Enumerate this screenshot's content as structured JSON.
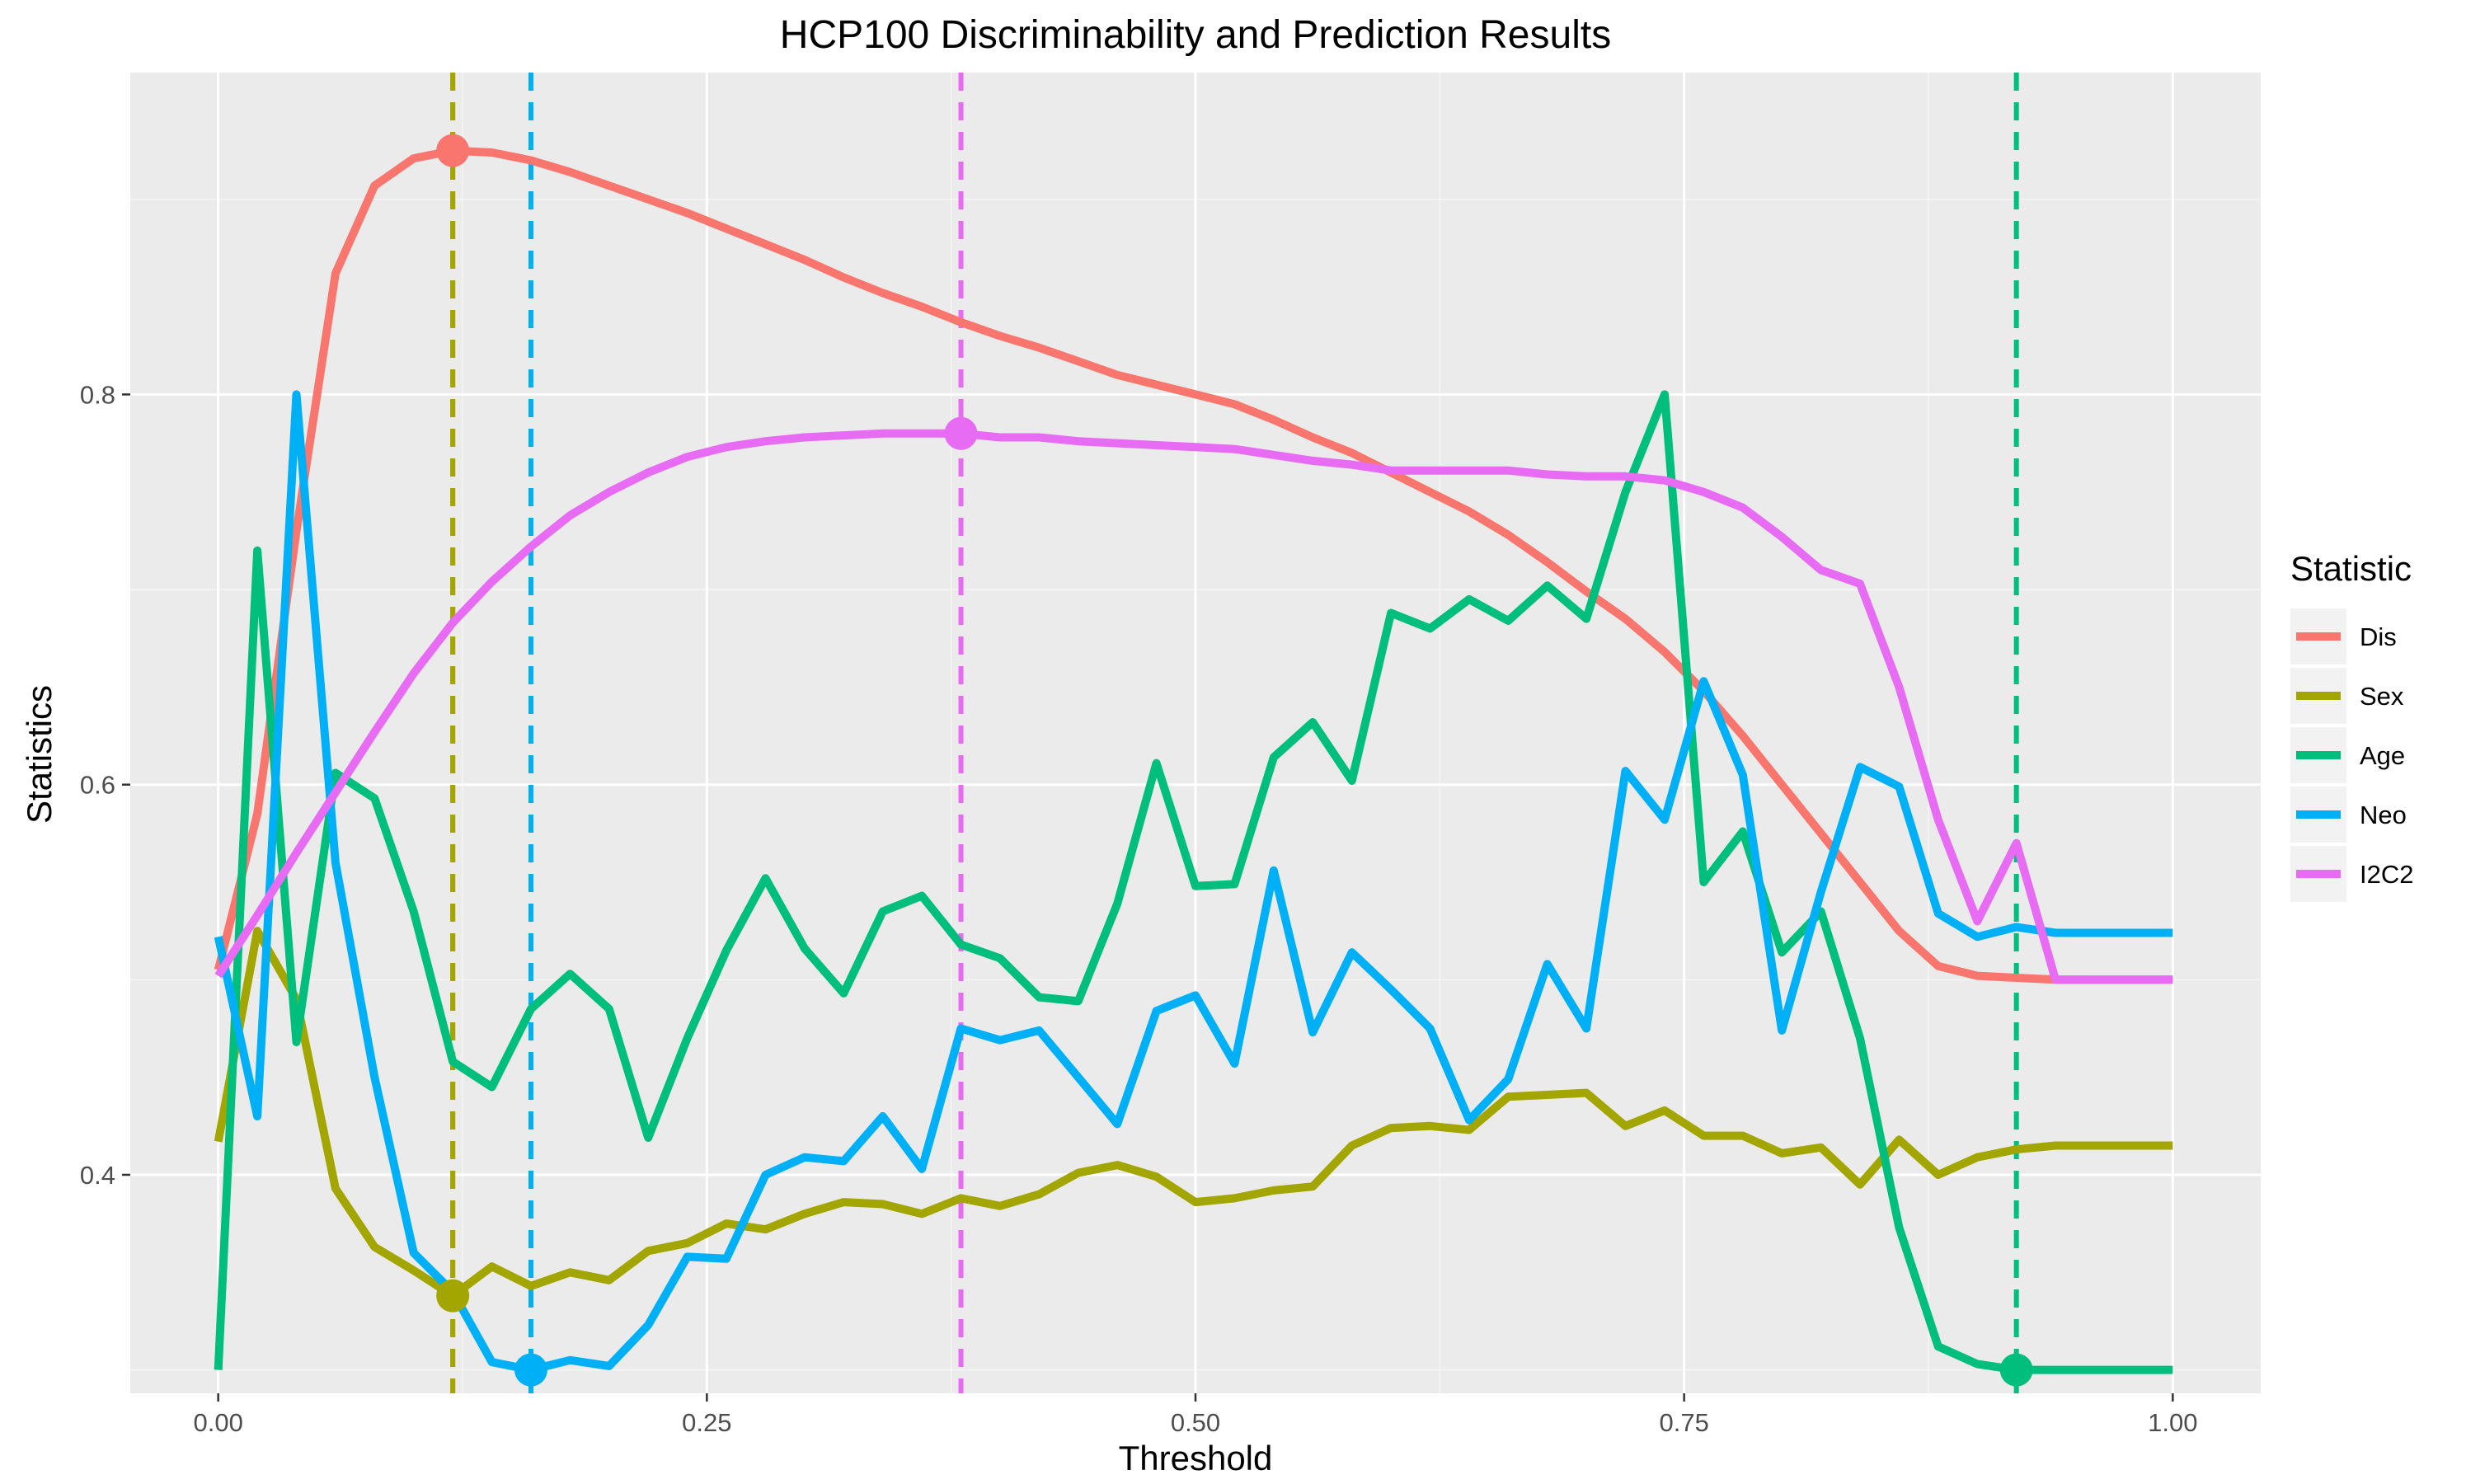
{
  "chart_data": {
    "type": "line",
    "title": "HCP100 Discriminability and Prediction Results",
    "xlabel": "Threshold",
    "ylabel": "Statistics",
    "xlim": [
      -0.045,
      1.045
    ],
    "ylim": [
      0.288,
      0.965
    ],
    "x_ticks": [
      0.0,
      0.25,
      0.5,
      0.75,
      1.0
    ],
    "x_tick_labels": [
      "0.00",
      "0.25",
      "0.50",
      "0.75",
      "1.00"
    ],
    "y_ticks": [
      0.4,
      0.6,
      0.8
    ],
    "y_tick_labels": [
      "0.4",
      "0.6",
      "0.8"
    ],
    "grid": true,
    "legend": {
      "title": "Statistic",
      "position": "right"
    },
    "series": [
      {
        "name": "Dis",
        "color": "#F8766D",
        "x": [
          0.0,
          0.02,
          0.04,
          0.06,
          0.08,
          0.1,
          0.12,
          0.14,
          0.16,
          0.18,
          0.2,
          0.22,
          0.24,
          0.26,
          0.28,
          0.3,
          0.32,
          0.34,
          0.36,
          0.38,
          0.4,
          0.42,
          0.44,
          0.46,
          0.48,
          0.5,
          0.52,
          0.54,
          0.56,
          0.58,
          0.6,
          0.62,
          0.64,
          0.66,
          0.68,
          0.7,
          0.72,
          0.74,
          0.76,
          0.78,
          0.8,
          0.82,
          0.84,
          0.86,
          0.88,
          0.9,
          0.92,
          0.94,
          0.96,
          0.98,
          1.0
        ],
        "values": [
          0.505,
          0.585,
          0.73,
          0.862,
          0.907,
          0.921,
          0.925,
          0.924,
          0.92,
          0.914,
          0.907,
          0.9,
          0.893,
          0.885,
          0.877,
          0.869,
          0.86,
          0.852,
          0.845,
          0.837,
          0.83,
          0.824,
          0.817,
          0.81,
          0.805,
          0.8,
          0.795,
          0.787,
          0.778,
          0.77,
          0.76,
          0.75,
          0.74,
          0.728,
          0.714,
          0.699,
          0.685,
          0.668,
          0.648,
          0.625,
          0.6,
          0.575,
          0.55,
          0.525,
          0.507,
          0.502,
          0.501,
          0.5,
          0.5,
          0.5,
          0.5
        ],
        "optimum": {
          "x": 0.12,
          "y": 0.925
        }
      },
      {
        "name": "Sex",
        "color": "#A3A500",
        "x": [
          0.0,
          0.02,
          0.04,
          0.06,
          0.08,
          0.1,
          0.12,
          0.14,
          0.16,
          0.18,
          0.2,
          0.22,
          0.24,
          0.26,
          0.28,
          0.3,
          0.32,
          0.34,
          0.36,
          0.38,
          0.4,
          0.42,
          0.44,
          0.46,
          0.48,
          0.5,
          0.52,
          0.54,
          0.56,
          0.58,
          0.6,
          0.62,
          0.64,
          0.66,
          0.68,
          0.7,
          0.72,
          0.74,
          0.76,
          0.78,
          0.8,
          0.82,
          0.84,
          0.86,
          0.88,
          0.9,
          0.92,
          0.94,
          0.96,
          0.98,
          1.0
        ],
        "values": [
          0.417,
          0.525,
          0.49,
          0.393,
          0.363,
          0.351,
          0.338,
          0.353,
          0.343,
          0.35,
          0.346,
          0.361,
          0.365,
          0.375,
          0.372,
          0.38,
          0.386,
          0.385,
          0.38,
          0.388,
          0.384,
          0.39,
          0.401,
          0.405,
          0.399,
          0.386,
          0.388,
          0.392,
          0.394,
          0.415,
          0.424,
          0.425,
          0.423,
          0.44,
          0.441,
          0.442,
          0.425,
          0.433,
          0.42,
          0.42,
          0.411,
          0.414,
          0.395,
          0.418,
          0.4,
          0.409,
          0.413,
          0.415,
          0.415,
          0.415,
          0.415
        ],
        "optimum": {
          "x": 0.12,
          "y": 0.338
        }
      },
      {
        "name": "Age",
        "color": "#00BF7D",
        "x": [
          0.0,
          0.02,
          0.04,
          0.06,
          0.08,
          0.1,
          0.12,
          0.14,
          0.16,
          0.18,
          0.2,
          0.22,
          0.24,
          0.26,
          0.28,
          0.3,
          0.32,
          0.34,
          0.36,
          0.38,
          0.4,
          0.42,
          0.44,
          0.46,
          0.48,
          0.5,
          0.52,
          0.54,
          0.56,
          0.58,
          0.6,
          0.62,
          0.64,
          0.66,
          0.68,
          0.7,
          0.72,
          0.74,
          0.76,
          0.78,
          0.8,
          0.82,
          0.84,
          0.86,
          0.88,
          0.9,
          0.92,
          0.94,
          0.96,
          0.98,
          1.0
        ],
        "values": [
          0.3,
          0.72,
          0.468,
          0.606,
          0.593,
          0.535,
          0.458,
          0.445,
          0.485,
          0.503,
          0.485,
          0.419,
          0.47,
          0.515,
          0.552,
          0.516,
          0.493,
          0.535,
          0.543,
          0.518,
          0.511,
          0.491,
          0.489,
          0.539,
          0.611,
          0.548,
          0.549,
          0.614,
          0.632,
          0.602,
          0.688,
          0.68,
          0.695,
          0.684,
          0.702,
          0.685,
          0.75,
          0.8,
          0.55,
          0.576,
          0.514,
          0.535,
          0.47,
          0.373,
          0.312,
          0.303,
          0.3,
          0.3,
          0.3,
          0.3,
          0.3
        ],
        "optimum": {
          "x": 0.92,
          "y": 0.3
        }
      },
      {
        "name": "Neo",
        "color": "#00B0F6",
        "x": [
          0.0,
          0.02,
          0.04,
          0.06,
          0.08,
          0.1,
          0.12,
          0.14,
          0.16,
          0.18,
          0.2,
          0.22,
          0.24,
          0.26,
          0.28,
          0.3,
          0.32,
          0.34,
          0.36,
          0.38,
          0.4,
          0.42,
          0.44,
          0.46,
          0.48,
          0.5,
          0.52,
          0.54,
          0.56,
          0.58,
          0.6,
          0.62,
          0.64,
          0.66,
          0.68,
          0.7,
          0.72,
          0.74,
          0.76,
          0.78,
          0.8,
          0.82,
          0.84,
          0.86,
          0.88,
          0.9,
          0.92,
          0.94,
          0.96,
          0.98,
          1.0
        ],
        "values": [
          0.522,
          0.43,
          0.8,
          0.56,
          0.45,
          0.36,
          0.34,
          0.304,
          0.3,
          0.305,
          0.302,
          0.323,
          0.358,
          0.357,
          0.4,
          0.409,
          0.407,
          0.43,
          0.403,
          0.475,
          0.469,
          0.474,
          0.45,
          0.426,
          0.484,
          0.492,
          0.457,
          0.556,
          0.473,
          0.514,
          0.495,
          0.475,
          0.428,
          0.449,
          0.508,
          0.475,
          0.607,
          0.582,
          0.653,
          0.605,
          0.474,
          0.545,
          0.609,
          0.599,
          0.534,
          0.522,
          0.527,
          0.524,
          0.524,
          0.524,
          0.524
        ],
        "optimum": {
          "x": 0.16,
          "y": 0.3
        }
      },
      {
        "name": "I2C2",
        "color": "#E76BF3",
        "x": [
          0.0,
          0.02,
          0.04,
          0.06,
          0.08,
          0.1,
          0.12,
          0.14,
          0.16,
          0.18,
          0.2,
          0.22,
          0.24,
          0.26,
          0.28,
          0.3,
          0.32,
          0.34,
          0.36,
          0.38,
          0.4,
          0.42,
          0.44,
          0.46,
          0.48,
          0.5,
          0.52,
          0.54,
          0.56,
          0.58,
          0.6,
          0.62,
          0.64,
          0.66,
          0.68,
          0.7,
          0.72,
          0.74,
          0.76,
          0.78,
          0.8,
          0.82,
          0.84,
          0.86,
          0.88,
          0.9,
          0.92,
          0.94,
          0.96,
          0.98,
          1.0
        ],
        "values": [
          0.502,
          0.533,
          0.565,
          0.596,
          0.627,
          0.657,
          0.683,
          0.704,
          0.722,
          0.738,
          0.75,
          0.76,
          0.768,
          0.773,
          0.776,
          0.778,
          0.779,
          0.78,
          0.78,
          0.78,
          0.778,
          0.778,
          0.776,
          0.775,
          0.774,
          0.773,
          0.772,
          0.769,
          0.766,
          0.764,
          0.761,
          0.761,
          0.761,
          0.761,
          0.759,
          0.758,
          0.758,
          0.756,
          0.75,
          0.742,
          0.727,
          0.71,
          0.703,
          0.65,
          0.582,
          0.53,
          0.57,
          0.5,
          0.5,
          0.5,
          0.5
        ],
        "optimum": {
          "x": 0.38,
          "y": 0.78
        }
      }
    ]
  }
}
